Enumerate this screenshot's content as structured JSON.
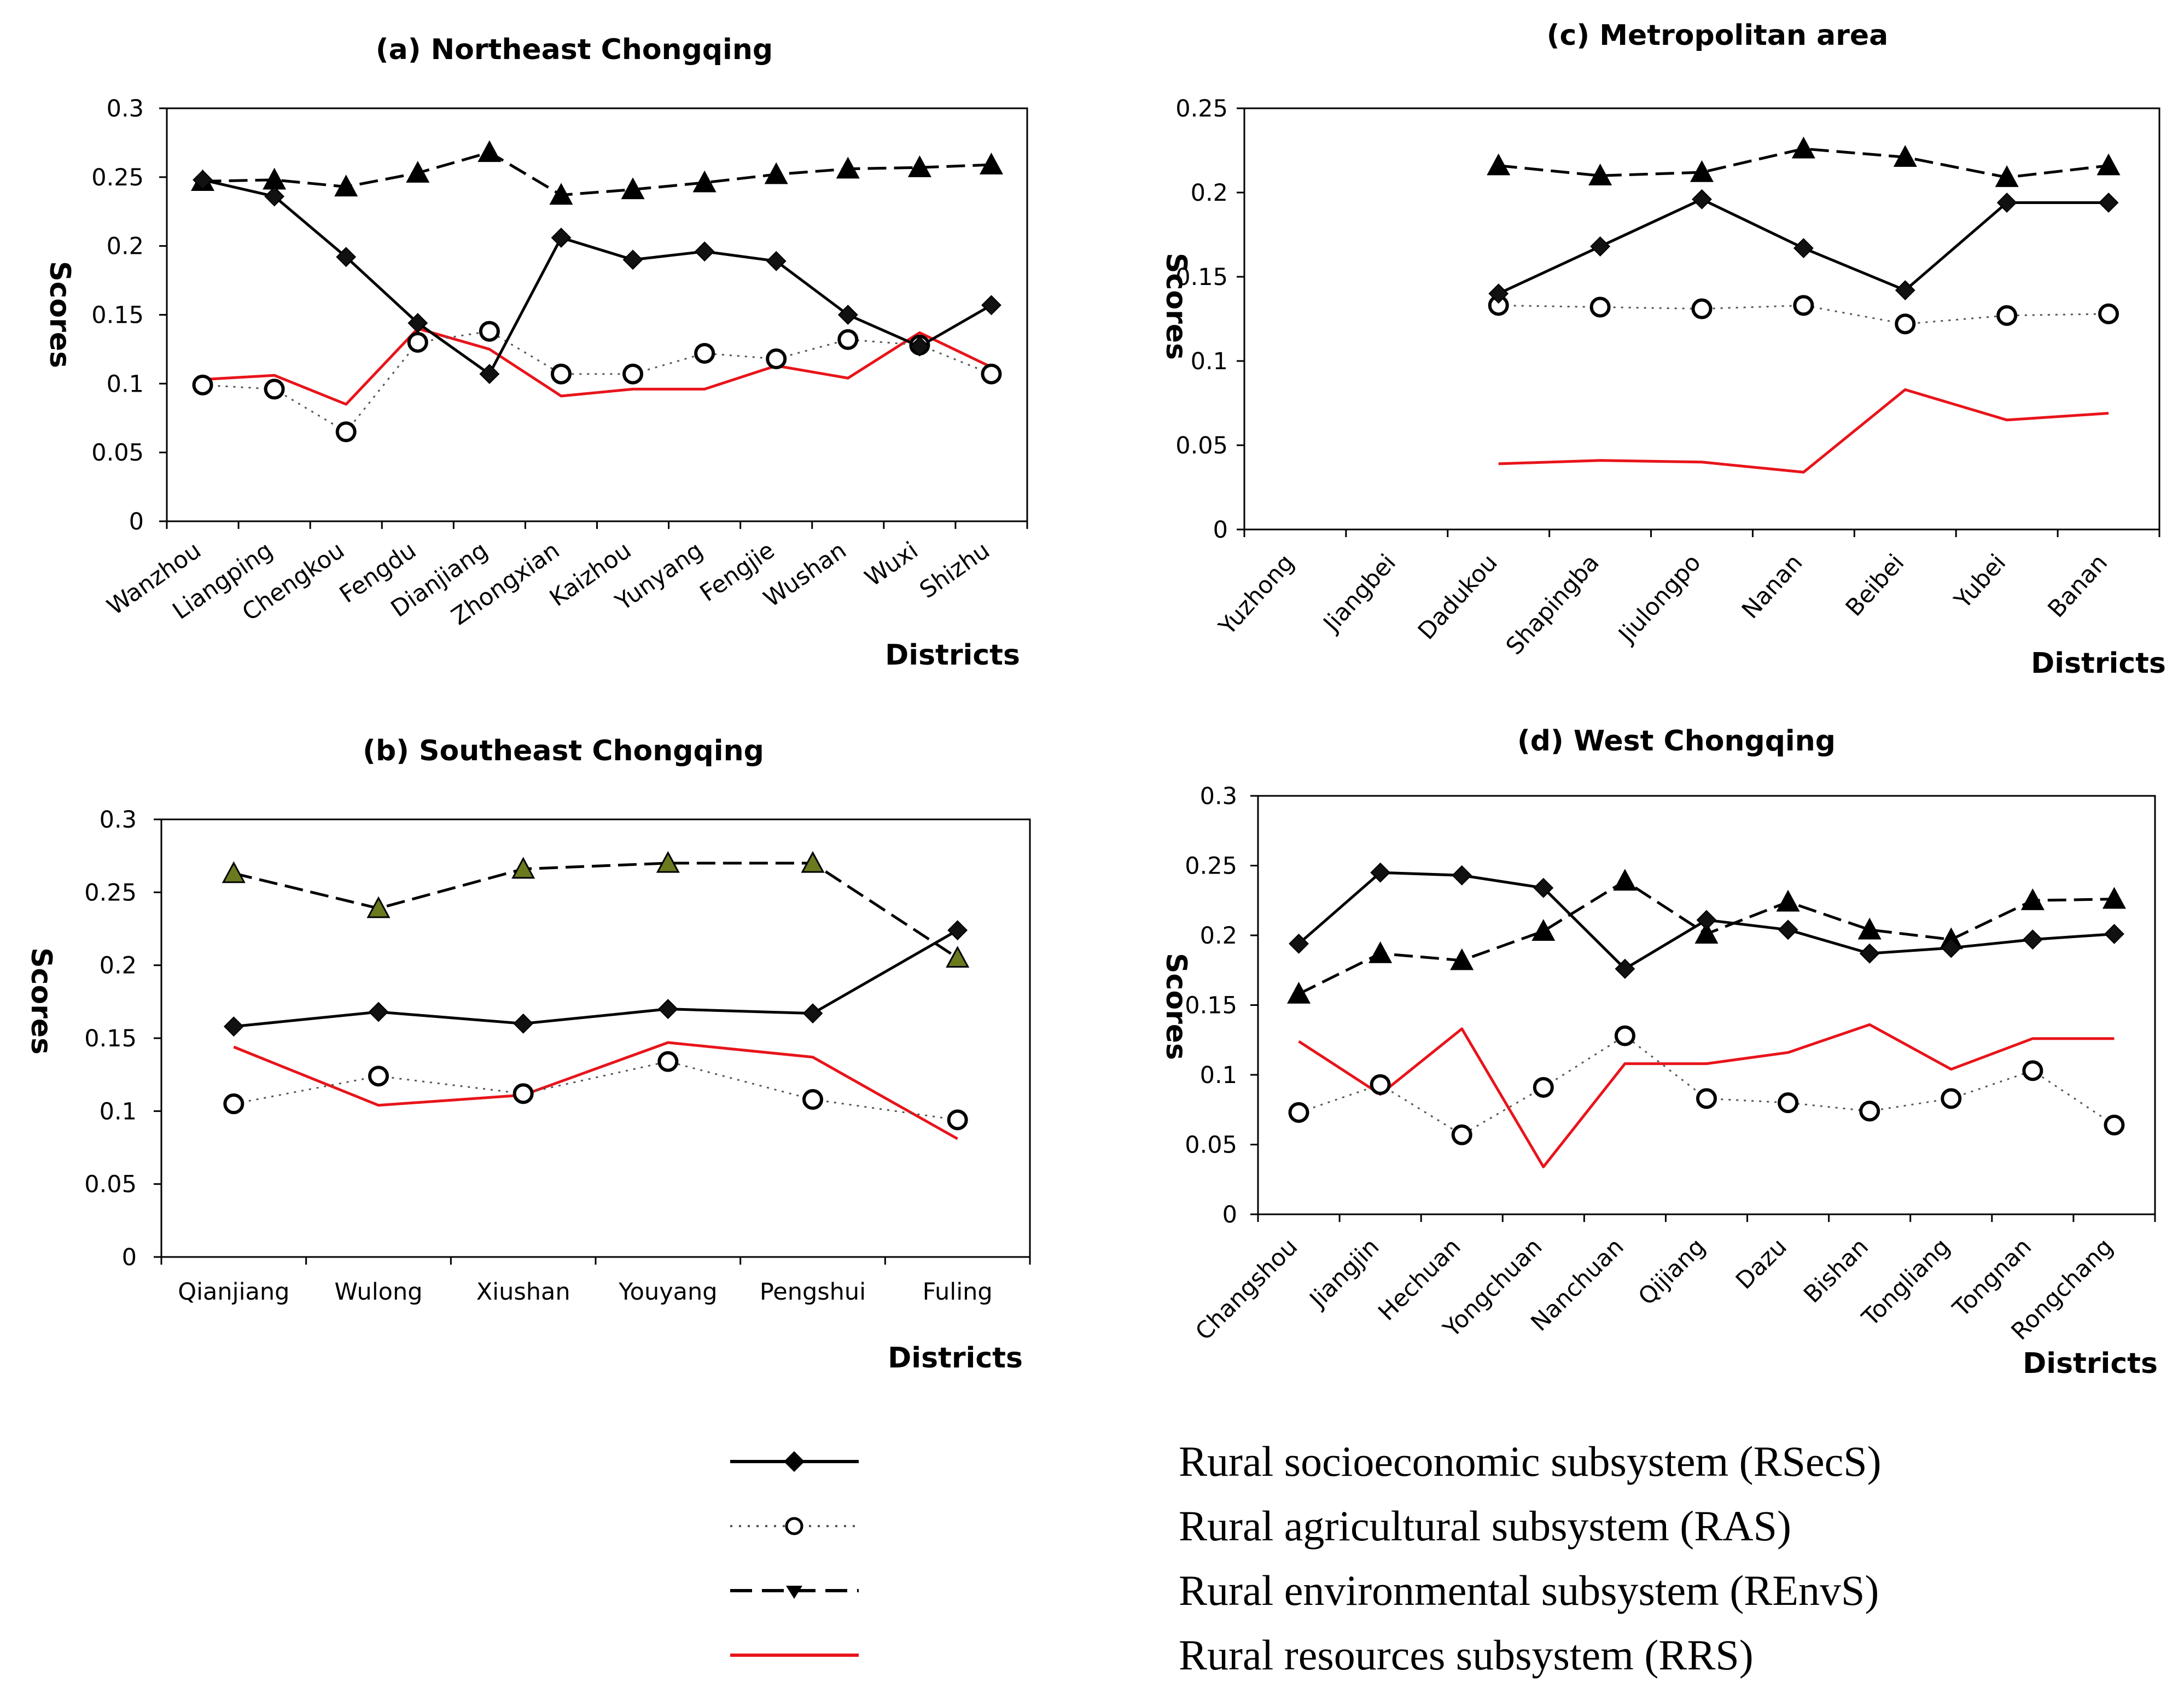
{
  "chart_data": [
    {
      "id": "a",
      "type": "line",
      "title": "(a) Northeast Chongqing",
      "xlabel": "Districts",
      "ylabel": "Scores",
      "ylim": [
        0,
        0.3
      ],
      "yticks": [
        "0",
        "0.05",
        "0.1",
        "0.15",
        "0.2",
        "0.25",
        "0.3"
      ],
      "categories": [
        "Wanzhou",
        "Liangping",
        "Chengkou",
        "Fengdu",
        "Dianjiang",
        "Zhongxian",
        "Kaizhou",
        "Yunyang",
        "Fengjie",
        "Wushan",
        "Wuxi",
        "Shizhu"
      ],
      "series": [
        {
          "key": "RSecS",
          "values": [
            0.248,
            0.236,
            0.192,
            0.144,
            0.107,
            0.206,
            0.19,
            0.196,
            0.189,
            0.15,
            0.127,
            0.157
          ]
        },
        {
          "key": "RAS",
          "values": [
            0.099,
            0.096,
            0.065,
            0.13,
            0.138,
            0.107,
            0.107,
            0.122,
            0.118,
            0.132,
            0.128,
            0.107
          ]
        },
        {
          "key": "REnvS",
          "values": [
            0.247,
            0.248,
            0.243,
            0.253,
            0.268,
            0.237,
            0.241,
            0.246,
            0.252,
            0.256,
            0.257,
            0.259
          ]
        },
        {
          "key": "RRS",
          "values": [
            0.103,
            0.106,
            0.085,
            0.14,
            0.125,
            0.091,
            0.096,
            0.096,
            0.113,
            0.104,
            0.137,
            0.112
          ]
        }
      ]
    },
    {
      "id": "c",
      "type": "line",
      "title": "(c)  Metropolitan  area",
      "xlabel": "Districts",
      "ylabel": "Scores",
      "ylim": [
        0,
        0.25
      ],
      "yticks": [
        "0",
        "0.05",
        "0.1",
        "0.15",
        "0.2",
        "0.25"
      ],
      "categories": [
        "Yuzhong",
        "Jiangbei",
        "Dadukou",
        "Shapingba",
        "Jiulongpo",
        "Nanan",
        "Beibei",
        "Yubei",
        "Banan"
      ],
      "series": [
        {
          "key": "RSecS",
          "values": [
            null,
            null,
            0.14,
            0.168,
            0.196,
            0.167,
            0.142,
            0.194,
            0.194
          ]
        },
        {
          "key": "RAS",
          "values": [
            null,
            null,
            0.133,
            0.132,
            0.131,
            0.133,
            0.122,
            0.127,
            0.128
          ]
        },
        {
          "key": "REnvS",
          "values": [
            null,
            null,
            0.216,
            0.21,
            0.212,
            0.226,
            0.221,
            0.209,
            0.216
          ]
        },
        {
          "key": "RRS",
          "values": [
            null,
            null,
            0.039,
            0.041,
            0.04,
            0.034,
            0.083,
            0.065,
            0.069
          ]
        }
      ]
    },
    {
      "id": "b",
      "type": "line",
      "title": "(b)  Southeast  Chongqing",
      "xlabel": "Districts",
      "ylabel": "Scores",
      "ylim": [
        0,
        0.3
      ],
      "yticks": [
        "0",
        "0.05",
        "0.1",
        "0.15",
        "0.2",
        "0.25",
        "0.3"
      ],
      "categories": [
        "Qianjiang",
        "Wulong",
        "Xiushan",
        "Youyang",
        "Pengshui",
        "Fuling"
      ],
      "series": [
        {
          "key": "RSecS",
          "values": [
            0.158,
            0.168,
            0.16,
            0.17,
            0.167,
            0.224
          ]
        },
        {
          "key": "RAS",
          "values": [
            0.105,
            0.124,
            0.112,
            0.134,
            0.108,
            0.094
          ]
        },
        {
          "key": "REnvS",
          "values": [
            0.263,
            0.239,
            0.266,
            0.27,
            0.27,
            0.205
          ]
        },
        {
          "key": "RRS",
          "values": [
            0.144,
            0.104,
            0.111,
            0.147,
            0.137,
            0.081
          ]
        }
      ]
    },
    {
      "id": "d",
      "type": "line",
      "title": "(d)  West  Chongqing",
      "xlabel": "Districts",
      "ylabel": "Scores",
      "ylim": [
        0,
        0.3
      ],
      "yticks": [
        "0",
        "0.05",
        "0.1",
        "0.15",
        "0.2",
        "0.25",
        "0.3"
      ],
      "categories": [
        "Changshou",
        "Jiangjin",
        "Hechuan",
        "Yongchuan",
        "Nanchuan",
        "Qijiang",
        "Dazu",
        "Bishan",
        "Tongliang",
        "Tongnan",
        "Rongchang"
      ],
      "series": [
        {
          "key": "RSecS",
          "values": [
            0.194,
            0.245,
            0.243,
            0.234,
            0.176,
            0.211,
            0.204,
            0.187,
            0.191,
            0.197,
            0.201
          ]
        },
        {
          "key": "RAS",
          "values": [
            0.073,
            0.093,
            0.057,
            0.091,
            0.128,
            0.083,
            0.08,
            0.074,
            0.083,
            0.103,
            0.064
          ]
        },
        {
          "key": "REnvS",
          "values": [
            0.158,
            0.187,
            0.182,
            0.203,
            0.239,
            0.201,
            0.224,
            0.204,
            0.197,
            0.225,
            0.226
          ]
        },
        {
          "key": "RRS",
          "values": [
            0.124,
            0.086,
            0.133,
            0.034,
            0.108,
            0.108,
            0.116,
            0.136,
            0.104,
            0.126,
            0.126
          ]
        }
      ]
    }
  ],
  "series_styles": {
    "RSecS": {
      "color": "#000000",
      "marker": "diamond",
      "dash": "solid"
    },
    "RAS": {
      "color": "#555555",
      "marker": "open-circle",
      "dash": "dotted"
    },
    "REnvS": {
      "color": "#000000",
      "marker": "triangle",
      "dash": "dashed"
    },
    "RRS": {
      "color": "#e8141a",
      "marker": "none",
      "dash": "solid"
    }
  },
  "legend": [
    {
      "key": "RSecS",
      "label": "Rural socioeconomic subsystem (RSecS)"
    },
    {
      "key": "RAS",
      "label": "Rural agricultural subsystem (RAS)"
    },
    {
      "key": "REnvS",
      "label": "Rural environmental subsystem (REnvS)"
    },
    {
      "key": "RRS",
      "label": "Rural resources subsystem (RRS)"
    }
  ]
}
